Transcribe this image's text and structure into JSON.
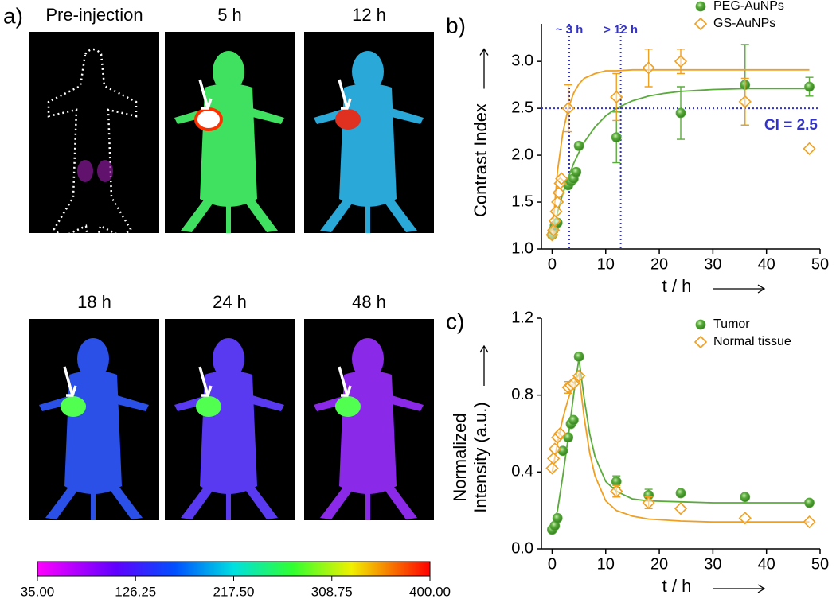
{
  "panel_a": {
    "label": "a)",
    "images": [
      "Pre-injection",
      "5 h",
      "12 h",
      "18 h",
      "24 h",
      "48 h"
    ],
    "colorbar": {
      "lim": [
        35,
        400
      ],
      "ticks": [
        {
          "value": 35,
          "label": "35.00"
        },
        {
          "value": 126.25,
          "label": "126.25"
        },
        {
          "value": 217.5,
          "label": "217.50"
        },
        {
          "value": 308.75,
          "label": "308.75"
        },
        {
          "value": 400,
          "label": "400.00"
        }
      ]
    }
  },
  "chart_data": [
    {
      "type": "scatter",
      "label": "b)",
      "y_label": [
        "Contrast Index"
      ],
      "x_label": "t / h",
      "xlim": [
        -2,
        50
      ],
      "xticks": [
        0,
        10,
        20,
        30,
        40,
        50
      ],
      "ylim": [
        1,
        3.4
      ],
      "yticks": [
        {
          "value": 1,
          "label": "1.0"
        },
        1.5,
        {
          "value": 2,
          "label": "2.0"
        },
        2.5,
        {
          "value": 3,
          "label": "3.0"
        }
      ],
      "fit_x": [
        0,
        1,
        2,
        3,
        4,
        5,
        6,
        8,
        10,
        12,
        15,
        18,
        21,
        24,
        30,
        36,
        42,
        48
      ],
      "reference_lines": {
        "x": [
          3.2,
          12.8
        ],
        "y": [
          2.5
        ],
        "color": "#3333cc"
      },
      "annotations": [
        "~ 3 h",
        "> 12 h",
        "CI = 2.5"
      ],
      "series": [
        {
          "name": "PEG-AuNPs",
          "color": "#5aab3c",
          "marker": "circle",
          "x": [
            0,
            0.25,
            0.5,
            1,
            3,
            3.5,
            4,
            4.5,
            5,
            12,
            24,
            36,
            48
          ],
          "values": [
            1.15,
            1.2,
            1.25,
            1.28,
            1.68,
            1.72,
            1.75,
            1.82,
            2.1,
            2.19,
            2.45,
            2.75,
            2.73
          ],
          "errors": [
            null,
            null,
            null,
            null,
            null,
            null,
            null,
            null,
            null,
            0.27,
            0.28,
            0.43,
            0.1
          ],
          "fit_values": [
            1.15,
            1.39,
            1.59,
            1.76,
            1.91,
            2.03,
            2.14,
            2.3,
            2.42,
            2.5,
            2.58,
            2.63,
            2.66,
            2.68,
            2.7,
            2.71,
            2.71,
            2.71
          ]
        },
        {
          "name": "GS-AuNPs",
          "color": "#f0a020",
          "marker": "diamond",
          "x": [
            0,
            0.25,
            0.5,
            0.75,
            1,
            1.25,
            1.5,
            1.75,
            3,
            12,
            18,
            24,
            36,
            48
          ],
          "values": [
            1.15,
            1.2,
            1.3,
            1.4,
            1.5,
            1.6,
            1.7,
            1.75,
            2.5,
            2.62,
            2.93,
            3.0,
            2.57,
            2.07
          ],
          "errors": [
            null,
            null,
            null,
            null,
            null,
            null,
            null,
            null,
            0.25,
            0.25,
            0.2,
            0.13,
            0.25,
            null
          ],
          "fit_values": [
            1.15,
            1.83,
            2.24,
            2.5,
            2.66,
            2.76,
            2.82,
            2.87,
            2.9,
            2.9,
            2.91,
            2.91,
            2.91,
            2.91,
            2.91,
            2.91,
            2.91,
            2.91
          ]
        }
      ]
    },
    {
      "type": "scatter",
      "label": "c)",
      "y_label": [
        "Normalized",
        "Intensity (a.u.)"
      ],
      "x_label": "t / h",
      "xlim": [
        -2,
        50
      ],
      "xticks": [
        0,
        10,
        20,
        30,
        40,
        50
      ],
      "ylim": [
        0,
        1.2
      ],
      "yticks": [
        {
          "value": 0,
          "label": "0.0"
        },
        0.4,
        0.8,
        1.2
      ],
      "fit_x": [
        0,
        1,
        2,
        3,
        4,
        5,
        6,
        7,
        8,
        10,
        12,
        15,
        18,
        24,
        30,
        36,
        42,
        48
      ],
      "series": [
        {
          "name": "Tumor",
          "color": "#5aab3c",
          "marker": "circle",
          "x": [
            0,
            0.5,
            1,
            2,
            3,
            3.5,
            4,
            5,
            12,
            18,
            24,
            36,
            48
          ],
          "values": [
            0.1,
            0.12,
            0.16,
            0.51,
            0.58,
            0.65,
            0.67,
            1.0,
            0.35,
            0.28,
            0.29,
            0.27,
            0.24
          ],
          "errors": [
            null,
            null,
            null,
            null,
            null,
            null,
            null,
            null,
            0.03,
            0.03,
            null,
            null,
            null
          ],
          "fit_values": [
            0.1,
            0.2,
            0.38,
            0.58,
            0.8,
            0.99,
            0.78,
            0.6,
            0.48,
            0.35,
            0.3,
            0.26,
            0.25,
            0.245,
            0.24,
            0.24,
            0.24,
            0.24
          ]
        },
        {
          "name": "Normal tissue",
          "color": "#f0a020",
          "marker": "diamond",
          "x": [
            0,
            0.25,
            0.5,
            1,
            1.5,
            3,
            3.5,
            4,
            5,
            12,
            18,
            24,
            36,
            48
          ],
          "values": [
            0.42,
            0.47,
            0.52,
            0.58,
            0.6,
            0.84,
            0.85,
            0.86,
            0.9,
            0.3,
            0.24,
            0.21,
            0.16,
            0.14
          ],
          "errors": [
            null,
            null,
            null,
            null,
            null,
            0.03,
            null,
            null,
            null,
            0.03,
            0.03,
            null,
            null,
            null
          ],
          "fit_values": [
            0.4,
            0.55,
            0.68,
            0.78,
            0.86,
            0.91,
            0.68,
            0.5,
            0.38,
            0.25,
            0.2,
            0.17,
            0.155,
            0.145,
            0.14,
            0.14,
            0.14,
            0.14
          ]
        }
      ]
    }
  ]
}
